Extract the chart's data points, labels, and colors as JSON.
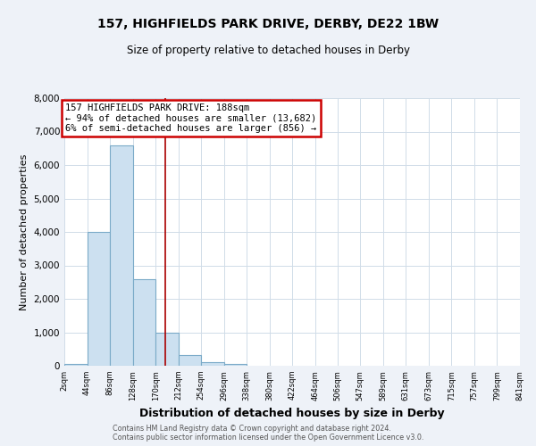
{
  "title": "157, HIGHFIELDS PARK DRIVE, DERBY, DE22 1BW",
  "subtitle": "Size of property relative to detached houses in Derby",
  "xlabel": "Distribution of detached houses by size in Derby",
  "ylabel": "Number of detached properties",
  "bin_edges": [
    2,
    44,
    86,
    128,
    170,
    212,
    254,
    296,
    338,
    380,
    422,
    464,
    506,
    547,
    589,
    631,
    673,
    715,
    757,
    799,
    841
  ],
  "bar_heights": [
    55,
    4000,
    6600,
    2600,
    975,
    330,
    110,
    50,
    0,
    0,
    0,
    0,
    0,
    0,
    0,
    0,
    0,
    0,
    0,
    0
  ],
  "bar_color": "#cce0f0",
  "bar_edge_color": "#7aaac8",
  "property_size": 188,
  "vline_color": "#aa0000",
  "annotation_line1": "157 HIGHFIELDS PARK DRIVE: 188sqm",
  "annotation_line2": "← 94% of detached houses are smaller (13,682)",
  "annotation_line3": "6% of semi-detached houses are larger (856) →",
  "annotation_box_edgecolor": "#cc0000",
  "ylim": [
    0,
    8000
  ],
  "yticks": [
    0,
    1000,
    2000,
    3000,
    4000,
    5000,
    6000,
    7000,
    8000
  ],
  "tick_labels": [
    "2sqm",
    "44sqm",
    "86sqm",
    "128sqm",
    "170sqm",
    "212sqm",
    "254sqm",
    "296sqm",
    "338sqm",
    "380sqm",
    "422sqm",
    "464sqm",
    "506sqm",
    "547sqm",
    "589sqm",
    "631sqm",
    "673sqm",
    "715sqm",
    "757sqm",
    "799sqm",
    "841sqm"
  ],
  "footer_line1": "Contains HM Land Registry data © Crown copyright and database right 2024.",
  "footer_line2": "Contains public sector information licensed under the Open Government Licence v3.0.",
  "background_color": "#eef2f8",
  "plot_background_color": "#ffffff",
  "grid_color": "#d0dce8"
}
